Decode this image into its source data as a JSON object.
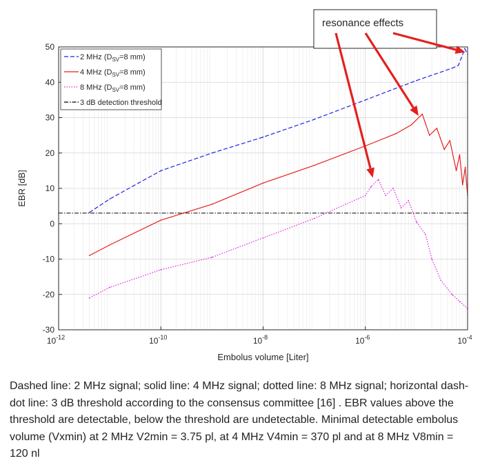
{
  "chart_data": {
    "type": "line",
    "xscale": "log",
    "xlim": [
      1e-12,
      0.0001
    ],
    "ylim": [
      -30,
      50
    ],
    "xlabel": "Embolus volume [Liter]",
    "ylabel": "EBR [dB]",
    "x_ticks": [
      1e-12,
      1e-10,
      1e-08,
      1e-06,
      0.0001
    ],
    "x_tick_labels": [
      {
        "base": "10",
        "exp": "-12"
      },
      {
        "base": "10",
        "exp": "-10"
      },
      {
        "base": "10",
        "exp": "-8"
      },
      {
        "base": "10",
        "exp": "-6"
      },
      {
        "base": "10",
        "exp": "-4"
      }
    ],
    "y_ticks": [
      -30,
      -20,
      -10,
      0,
      10,
      20,
      30,
      40,
      50
    ],
    "y_tick_labels": [
      "-30",
      "-20",
      "-10",
      "0",
      "10",
      "20",
      "30",
      "40",
      "50"
    ],
    "grid": true,
    "legend_position": "top-left",
    "series": [
      {
        "name": "2 MHz (D",
        "name_sub": "SV",
        "name_tail": "=8 mm)",
        "color": "#1f1fe6",
        "style": "dashed",
        "points": [
          [
            4e-12,
            3.2
          ],
          [
            1e-11,
            7.0
          ],
          [
            1e-10,
            15.0
          ],
          [
            1e-09,
            20.0
          ],
          [
            1e-08,
            24.5
          ],
          [
            1e-07,
            29.5
          ],
          [
            1e-06,
            35.0
          ],
          [
            1e-05,
            40.5
          ],
          [
            5e-05,
            44.0
          ],
          [
            6.6e-05,
            44.8
          ],
          [
            7.6e-05,
            47.0
          ],
          [
            8.8e-05,
            49.5
          ],
          [
            0.0001,
            48.0
          ]
        ]
      },
      {
        "name": "4 MHz (D",
        "name_sub": "SV",
        "name_tail": "=8 mm)",
        "color": "#e61e1e",
        "style": "solid",
        "points": [
          [
            4e-12,
            -9.0
          ],
          [
            1e-11,
            -6.0
          ],
          [
            1e-10,
            1.0
          ],
          [
            1e-09,
            5.5
          ],
          [
            1e-08,
            11.5
          ],
          [
            1e-07,
            16.5
          ],
          [
            1e-06,
            22.0
          ],
          [
            4e-06,
            25.5
          ],
          [
            8e-06,
            28.0
          ],
          [
            1.3e-05,
            31.0
          ],
          [
            1.8e-05,
            25.0
          ],
          [
            2.5e-05,
            27.0
          ],
          [
            3.5e-05,
            21.0
          ],
          [
            4.5e-05,
            23.5
          ],
          [
            6e-05,
            15.0
          ],
          [
            7e-05,
            19.5
          ],
          [
            8e-05,
            11.0
          ],
          [
            9e-05,
            16.0
          ],
          [
            0.0001,
            8.0
          ]
        ]
      },
      {
        "name": "8 MHz (D",
        "name_sub": "SV",
        "name_tail": "=8 mm)",
        "color": "#e01ee0",
        "style": "dotted",
        "points": [
          [
            4e-12,
            -21.0
          ],
          [
            1e-11,
            -18.0
          ],
          [
            1e-10,
            -13.0
          ],
          [
            1e-09,
            -9.5
          ],
          [
            1e-08,
            -4.0
          ],
          [
            1e-07,
            1.5
          ],
          [
            1e-06,
            8.0
          ],
          [
            1.3e-06,
            10.5
          ],
          [
            1.8e-06,
            12.5
          ],
          [
            2.5e-06,
            8.0
          ],
          [
            3.5e-06,
            10.0
          ],
          [
            5e-06,
            4.5
          ],
          [
            7e-06,
            6.5
          ],
          [
            1e-05,
            0.5
          ],
          [
            1.5e-05,
            -3.0
          ],
          [
            2e-05,
            -10.0
          ],
          [
            3e-05,
            -16.0
          ],
          [
            5e-05,
            -20.0
          ],
          [
            7e-05,
            -22.0
          ],
          [
            0.0001,
            -24.0
          ]
        ]
      },
      {
        "name": "3 dB detection threshold",
        "color": "#000000",
        "style": "dashdot",
        "points": [
          [
            1e-12,
            3.0
          ],
          [
            0.0001,
            3.0
          ]
        ]
      }
    ],
    "annotation": {
      "text": "resonance effects",
      "arrow_targets": [
        [
          9e-05,
          48.5
        ],
        [
          1.1e-05,
          30.5
        ],
        [
          1.4e-06,
          13.0
        ]
      ],
      "arrow_color": "#e61e1e"
    }
  },
  "caption": "Dashed line: 2 MHz signal; solid line: 4 MHz signal; dotted line: 8 MHz signal; horizontal dash-dot line: 3 dB threshold according to the consensus committee [16] . EBR values above the threshold are detectable, below the threshold are undetectable. Minimal detectable embolus volume (Vxmin) at 2 MHz V2min = 3.75 pl, at 4 MHz V4min = 370 pl and at 8 MHz V8min = 120 nl"
}
